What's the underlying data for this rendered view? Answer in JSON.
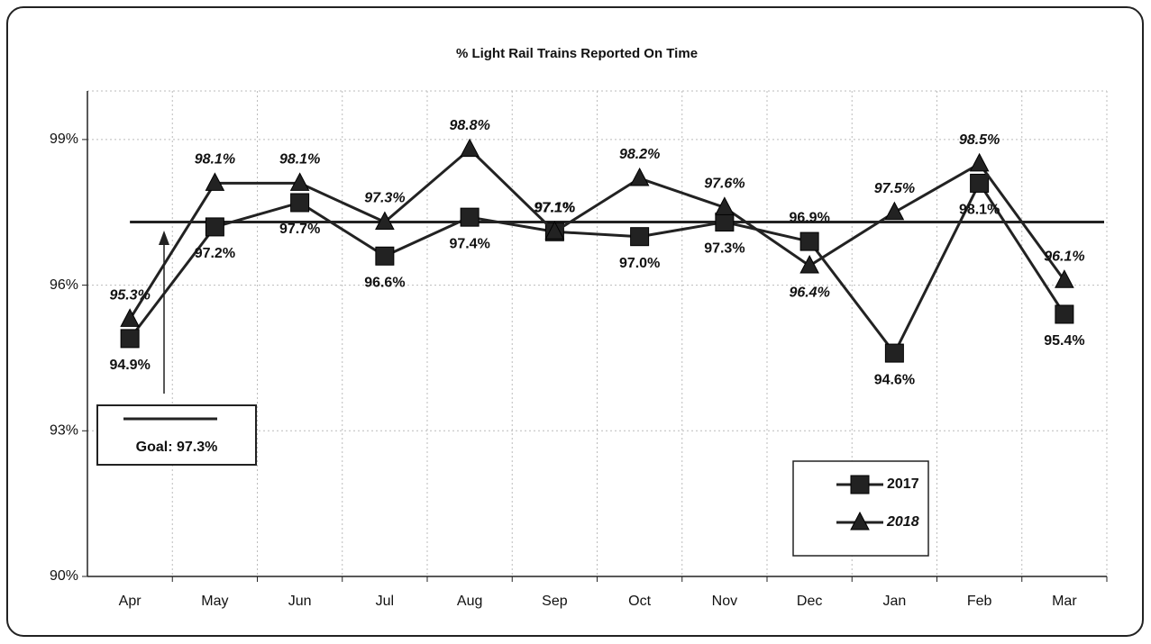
{
  "chart_data": {
    "type": "line",
    "title": "% Light Rail Trains Reported On Time",
    "categories": [
      "Apr",
      "May",
      "Jun",
      "Jul",
      "Aug",
      "Sep",
      "Oct",
      "Nov",
      "Dec",
      "Jan",
      "Feb",
      "Mar"
    ],
    "series": [
      {
        "name": "2017",
        "color": "#222222",
        "marker": "square",
        "label_style": "normal",
        "values": [
          94.9,
          97.2,
          97.7,
          96.6,
          97.4,
          97.1,
          97.0,
          97.3,
          96.9,
          94.6,
          98.1,
          95.4
        ],
        "value_labels": [
          "94.9%",
          "97.2%",
          "97.7%",
          "96.6%",
          "97.4%",
          "97.1%",
          "97.0%",
          "97.3%",
          "96.9%",
          "94.6%",
          "98.1%",
          "95.4%"
        ]
      },
      {
        "name": "2018",
        "color": "#222222",
        "marker": "triangle",
        "label_style": "italic",
        "values": [
          95.3,
          98.1,
          98.1,
          97.3,
          98.8,
          97.1,
          98.2,
          97.6,
          96.4,
          97.5,
          98.5,
          96.1
        ],
        "value_labels": [
          "95.3%",
          "98.1%",
          "98.1%",
          "97.3%",
          "98.8%",
          "97.1%",
          "98.2%",
          "97.6%",
          "96.4%",
          "97.5%",
          "98.5%",
          "96.1%"
        ]
      }
    ],
    "goal": {
      "value": 97.3,
      "label": "Goal: 97.3%"
    },
    "ylim": [
      90,
      100
    ],
    "yticks": [
      {
        "value": 90,
        "label": "90%"
      },
      {
        "value": 93,
        "label": "93%"
      },
      {
        "value": 96,
        "label": "96%"
      },
      {
        "value": 99,
        "label": "99%"
      }
    ],
    "grid": true
  }
}
